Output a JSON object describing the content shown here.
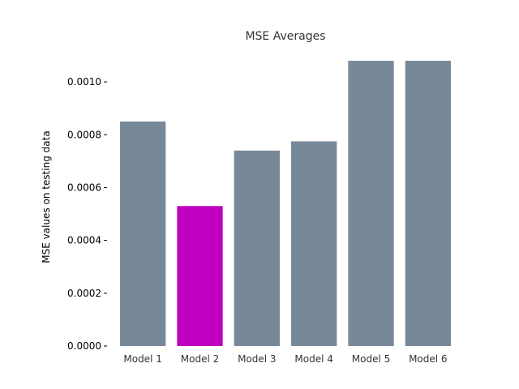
{
  "chart_data": {
    "type": "bar",
    "title": "MSE Averages",
    "xlabel": "",
    "ylabel": "MSE values on testing data",
    "categories": [
      "Model 1",
      "Model 2",
      "Model 3",
      "Model 4",
      "Model 5",
      "Model 6"
    ],
    "values": [
      0.00085,
      0.00053,
      0.00074,
      0.000775,
      0.00108,
      0.00108
    ],
    "colors": [
      "#778899",
      "#c000c0",
      "#778899",
      "#778899",
      "#778899",
      "#778899"
    ],
    "ylim": [
      0,
      0.00108
    ],
    "yticks": [
      0,
      0.0002,
      0.0004,
      0.0006,
      0.0008,
      0.001
    ],
    "ytick_labels": [
      "0.0000",
      "0.0002",
      "0.0004",
      "0.0006",
      "0.0008",
      "0.0010"
    ],
    "grid": false,
    "legend": "none"
  }
}
